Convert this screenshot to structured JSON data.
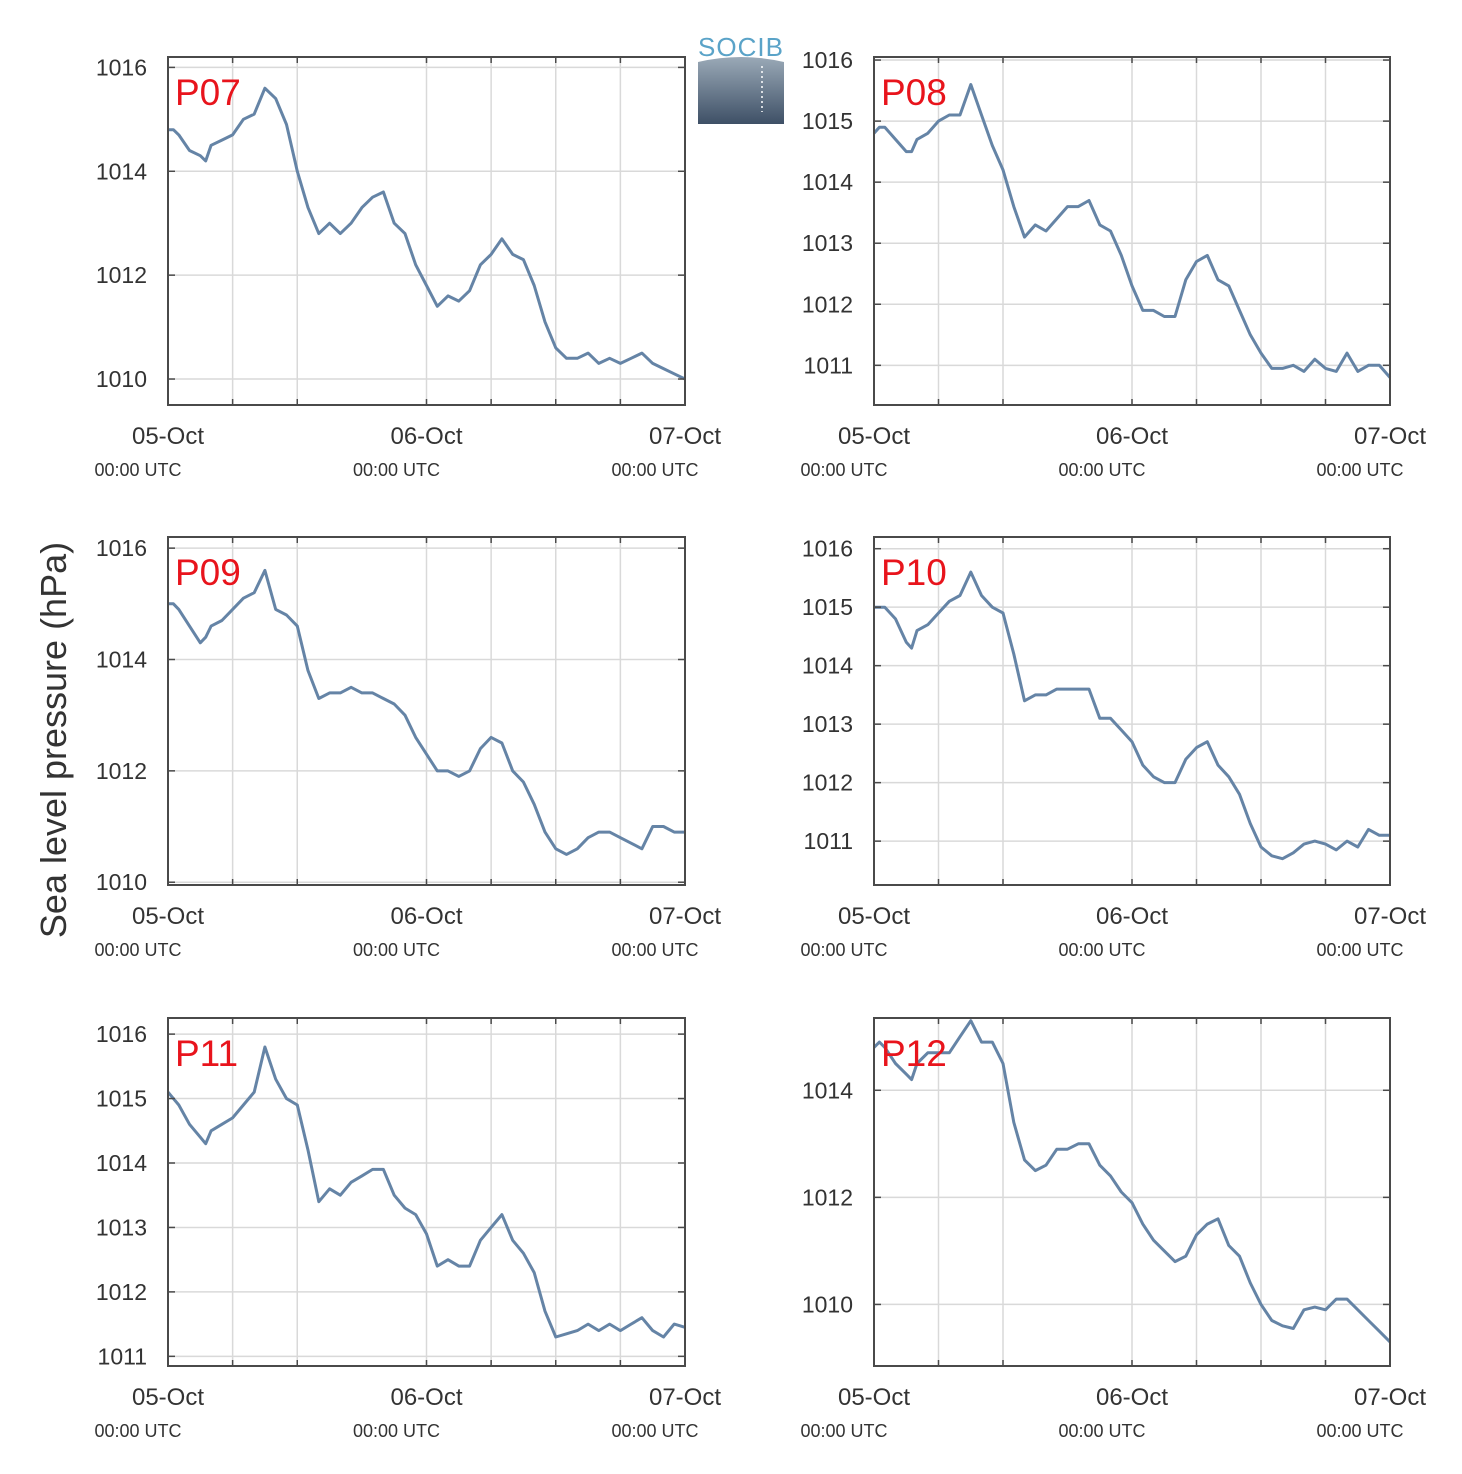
{
  "figure": {
    "ylabel": "Sea level pressure (hPa)",
    "logo_text": "SOCIB",
    "line_color": "#6584a6",
    "label_color": "#e8141c",
    "grid_color": "#d9d9d9",
    "axis_color": "#4a4a4a"
  },
  "x_axis": {
    "unit": "hours since 05-Oct 00:00 UTC",
    "range": [
      0,
      48
    ],
    "major_ticks": [
      0,
      24,
      48
    ],
    "minor_ticks": [
      6,
      12,
      30,
      36,
      42
    ],
    "date_labels": [
      "05-Oct",
      "06-Oct",
      "07-Oct"
    ],
    "time_labels": [
      "00:00 UTC",
      "00:00 UTC",
      "00:00 UTC"
    ]
  },
  "chart_data": [
    {
      "type": "line",
      "station": "P07",
      "ylim": [
        1009.5,
        1016.2
      ],
      "yticks": [
        1010,
        1012,
        1014,
        1016
      ],
      "series": [
        {
          "x": [
            0,
            0.5,
            1,
            2,
            3,
            3.5,
            4,
            5,
            6,
            7,
            8,
            9,
            10,
            11,
            12,
            13,
            14,
            15,
            16,
            17,
            18,
            19,
            20,
            21,
            22,
            23,
            24,
            25,
            26,
            27,
            28,
            29,
            30,
            31,
            32,
            33,
            34,
            35,
            36,
            37,
            38,
            39,
            40,
            41,
            42,
            43,
            44,
            45,
            46,
            47,
            48
          ],
          "values": [
            1014.8,
            1014.8,
            1014.7,
            1014.4,
            1014.3,
            1014.2,
            1014.5,
            1014.6,
            1014.7,
            1015.0,
            1015.1,
            1015.6,
            1015.4,
            1014.9,
            1014.0,
            1013.3,
            1012.8,
            1013.0,
            1012.8,
            1013.0,
            1013.3,
            1013.5,
            1013.6,
            1013.0,
            1012.8,
            1012.2,
            1011.8,
            1011.4,
            1011.6,
            1011.5,
            1011.7,
            1012.2,
            1012.4,
            1012.7,
            1012.4,
            1012.3,
            1011.8,
            1011.1,
            1010.6,
            1010.4,
            1010.4,
            1010.5,
            1010.3,
            1010.4,
            1010.3,
            1010.4,
            1010.5,
            1010.3,
            1010.2,
            1010.1,
            1010.0
          ]
        }
      ]
    },
    {
      "type": "line",
      "station": "P08",
      "ylim": [
        1010.35,
        1016.05
      ],
      "yticks": [
        1011,
        1012,
        1013,
        1014,
        1015,
        1016
      ],
      "series": [
        {
          "x": [
            0,
            0.5,
            1,
            2,
            3,
            3.5,
            4,
            5,
            6,
            7,
            8,
            9,
            10,
            11,
            12,
            13,
            14,
            15,
            16,
            17,
            18,
            19,
            20,
            21,
            22,
            23,
            24,
            25,
            26,
            27,
            28,
            29,
            30,
            31,
            32,
            33,
            34,
            35,
            36,
            37,
            38,
            39,
            40,
            41,
            42,
            43,
            44,
            45,
            46,
            47,
            48
          ],
          "values": [
            1014.8,
            1014.9,
            1014.9,
            1014.7,
            1014.5,
            1014.5,
            1014.7,
            1014.8,
            1015.0,
            1015.1,
            1015.1,
            1015.6,
            1015.1,
            1014.6,
            1014.2,
            1013.6,
            1013.1,
            1013.3,
            1013.2,
            1013.4,
            1013.6,
            1013.6,
            1013.7,
            1013.3,
            1013.2,
            1012.8,
            1012.3,
            1011.9,
            1011.9,
            1011.8,
            1011.8,
            1012.4,
            1012.7,
            1012.8,
            1012.4,
            1012.3,
            1011.9,
            1011.5,
            1011.2,
            1010.95,
            1010.95,
            1011.0,
            1010.9,
            1011.1,
            1010.95,
            1010.9,
            1011.2,
            1010.9,
            1011.0,
            1011.0,
            1010.8
          ]
        }
      ]
    },
    {
      "type": "line",
      "station": "P09",
      "ylim": [
        1009.95,
        1016.2
      ],
      "yticks": [
        1010,
        1012,
        1014,
        1016
      ],
      "series": [
        {
          "x": [
            0,
            0.5,
            1,
            2,
            3,
            3.5,
            4,
            5,
            6,
            7,
            8,
            9,
            10,
            11,
            12,
            13,
            14,
            15,
            16,
            17,
            18,
            19,
            20,
            21,
            22,
            23,
            24,
            25,
            26,
            27,
            28,
            29,
            30,
            31,
            32,
            33,
            34,
            35,
            36,
            37,
            38,
            39,
            40,
            41,
            42,
            43,
            44,
            45,
            46,
            47,
            48
          ],
          "values": [
            1015.0,
            1015.0,
            1014.9,
            1014.6,
            1014.3,
            1014.4,
            1014.6,
            1014.7,
            1014.9,
            1015.1,
            1015.2,
            1015.6,
            1014.9,
            1014.8,
            1014.6,
            1013.8,
            1013.3,
            1013.4,
            1013.4,
            1013.5,
            1013.4,
            1013.4,
            1013.3,
            1013.2,
            1013.0,
            1012.6,
            1012.3,
            1012.0,
            1012.0,
            1011.9,
            1012.0,
            1012.4,
            1012.6,
            1012.5,
            1012.0,
            1011.8,
            1011.4,
            1010.9,
            1010.6,
            1010.5,
            1010.6,
            1010.8,
            1010.9,
            1010.9,
            1010.8,
            1010.7,
            1010.6,
            1011.0,
            1011.0,
            1010.9,
            1010.9
          ]
        }
      ]
    },
    {
      "type": "line",
      "station": "P10",
      "ylim": [
        1010.25,
        1016.2
      ],
      "yticks": [
        1011,
        1012,
        1013,
        1014,
        1015,
        1016
      ],
      "series": [
        {
          "x": [
            0,
            0.5,
            1,
            2,
            3,
            3.5,
            4,
            5,
            6,
            7,
            8,
            9,
            10,
            11,
            12,
            13,
            14,
            15,
            16,
            17,
            18,
            19,
            20,
            21,
            22,
            23,
            24,
            25,
            26,
            27,
            28,
            29,
            30,
            31,
            32,
            33,
            34,
            35,
            36,
            37,
            38,
            39,
            40,
            41,
            42,
            43,
            44,
            45,
            46,
            47,
            48
          ],
          "values": [
            1015.0,
            1015.0,
            1015.0,
            1014.8,
            1014.4,
            1014.3,
            1014.6,
            1014.7,
            1014.9,
            1015.1,
            1015.2,
            1015.6,
            1015.2,
            1015.0,
            1014.9,
            1014.2,
            1013.4,
            1013.5,
            1013.5,
            1013.6,
            1013.6,
            1013.6,
            1013.6,
            1013.1,
            1013.1,
            1012.9,
            1012.7,
            1012.3,
            1012.1,
            1012.0,
            1012.0,
            1012.4,
            1012.6,
            1012.7,
            1012.3,
            1012.1,
            1011.8,
            1011.3,
            1010.9,
            1010.75,
            1010.7,
            1010.8,
            1010.95,
            1011.0,
            1010.95,
            1010.85,
            1011.0,
            1010.9,
            1011.2,
            1011.1,
            1011.1
          ]
        }
      ]
    },
    {
      "type": "line",
      "station": "P11",
      "ylim": [
        1010.85,
        1016.25
      ],
      "yticks": [
        1011,
        1012,
        1013,
        1014,
        1015,
        1016
      ],
      "series": [
        {
          "x": [
            0,
            0.5,
            1,
            2,
            3,
            3.5,
            4,
            5,
            6,
            7,
            8,
            9,
            10,
            11,
            12,
            13,
            14,
            15,
            16,
            17,
            18,
            19,
            20,
            21,
            22,
            23,
            24,
            25,
            26,
            27,
            28,
            29,
            30,
            31,
            32,
            33,
            34,
            35,
            36,
            37,
            38,
            39,
            40,
            41,
            42,
            43,
            44,
            45,
            46,
            47,
            48
          ],
          "values": [
            1015.1,
            1015.0,
            1014.9,
            1014.6,
            1014.4,
            1014.3,
            1014.5,
            1014.6,
            1014.7,
            1014.9,
            1015.1,
            1015.8,
            1015.3,
            1015.0,
            1014.9,
            1014.2,
            1013.4,
            1013.6,
            1013.5,
            1013.7,
            1013.8,
            1013.9,
            1013.9,
            1013.5,
            1013.3,
            1013.2,
            1012.9,
            1012.4,
            1012.5,
            1012.4,
            1012.4,
            1012.8,
            1013.0,
            1013.2,
            1012.8,
            1012.6,
            1012.3,
            1011.7,
            1011.3,
            1011.35,
            1011.4,
            1011.5,
            1011.4,
            1011.5,
            1011.4,
            1011.5,
            1011.6,
            1011.4,
            1011.3,
            1011.5,
            1011.45
          ]
        }
      ]
    },
    {
      "type": "line",
      "station": "P12",
      "ylim": [
        1008.85,
        1015.35
      ],
      "yticks": [
        1010,
        1012,
        1014
      ],
      "series": [
        {
          "x": [
            0,
            0.5,
            1,
            2,
            3,
            3.5,
            4,
            5,
            6,
            7,
            8,
            9,
            10,
            11,
            12,
            13,
            14,
            15,
            16,
            17,
            18,
            19,
            20,
            21,
            22,
            23,
            24,
            25,
            26,
            27,
            28,
            29,
            30,
            31,
            32,
            33,
            34,
            35,
            36,
            37,
            38,
            39,
            40,
            41,
            42,
            43,
            44,
            45,
            46,
            47,
            48
          ],
          "values": [
            1014.8,
            1014.9,
            1014.8,
            1014.5,
            1014.3,
            1014.2,
            1014.5,
            1014.7,
            1014.7,
            1014.7,
            1015.0,
            1015.3,
            1014.9,
            1014.9,
            1014.5,
            1013.4,
            1012.7,
            1012.5,
            1012.6,
            1012.9,
            1012.9,
            1013.0,
            1013.0,
            1012.6,
            1012.4,
            1012.1,
            1011.9,
            1011.5,
            1011.2,
            1011.0,
            1010.8,
            1010.9,
            1011.3,
            1011.5,
            1011.6,
            1011.1,
            1010.9,
            1010.4,
            1010.0,
            1009.7,
            1009.6,
            1009.55,
            1009.9,
            1009.95,
            1009.9,
            1010.1,
            1010.1,
            1009.9,
            1009.7,
            1009.5,
            1009.3
          ]
        }
      ]
    }
  ]
}
